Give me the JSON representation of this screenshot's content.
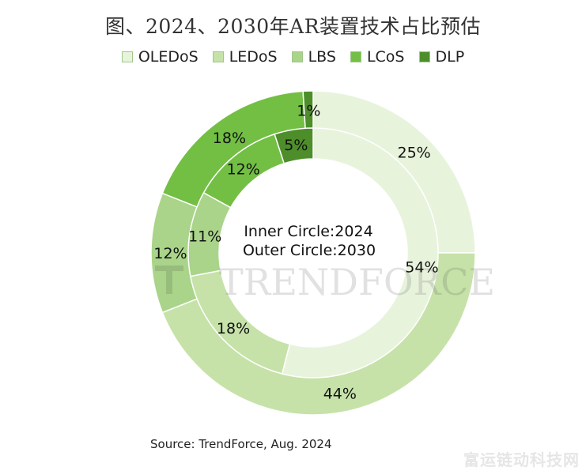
{
  "chart_data": {
    "type": "pie",
    "title": "图、2024、2030年AR装置技术占比预估",
    "legend": [
      "OLEDoS",
      "LEDoS",
      "LBS",
      "LCoS",
      "DLP"
    ],
    "legend_position": "top",
    "colors": {
      "OLEDoS": "#e8f3dc",
      "LEDoS": "#c6e2a9",
      "LBS": "#a9d48a",
      "LCoS": "#72bf44",
      "DLP": "#4e8e2a"
    },
    "center_text": [
      "Inner Circle:2024",
      "Outer Circle:2030"
    ],
    "series": [
      {
        "name": "Outer Circle:2030",
        "ring": "outer",
        "labels": [
          "OLEDoS",
          "LEDoS",
          "LBS",
          "LCoS",
          "DLP"
        ],
        "values": [
          25,
          44,
          12,
          18,
          1
        ],
        "data_labels": [
          "25%",
          "44%",
          "12%",
          "18%",
          "1%"
        ]
      },
      {
        "name": "Inner Circle:2024",
        "ring": "inner",
        "labels": [
          "OLEDoS",
          "LEDoS",
          "LBS",
          "LCoS",
          "DLP"
        ],
        "values": [
          54,
          18,
          11,
          12,
          5
        ],
        "data_labels": [
          "54%",
          "18%",
          "11%",
          "12%",
          "5%"
        ]
      }
    ],
    "watermark": "TrendForce"
  },
  "source": "Source: TrendForce, Aug. 2024",
  "site_watermark": "富运链动科技网"
}
